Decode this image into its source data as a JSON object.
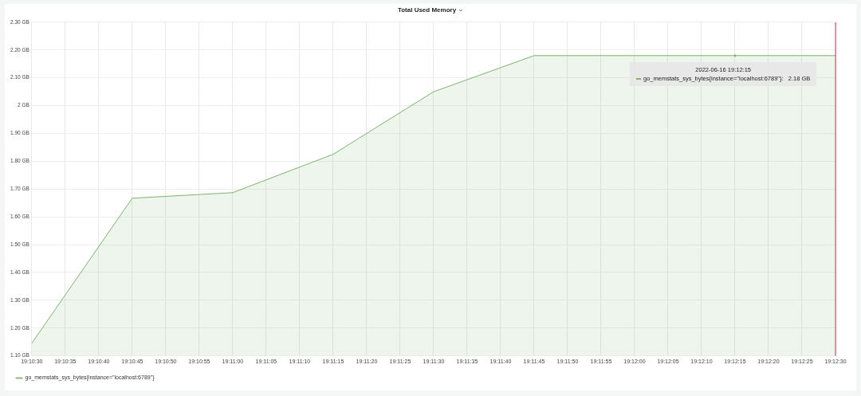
{
  "chart_data": {
    "type": "area",
    "title": "Total Used Memory",
    "x": [
      "2022-06-16T19:10:30",
      "2022-06-16T19:10:45",
      "2022-06-16T19:11:00",
      "2022-06-16T19:11:15",
      "2022-06-16T19:11:30",
      "2022-06-16T19:11:45",
      "2022-06-16T19:12:00",
      "2022-06-16T19:12:15",
      "2022-06-16T19:12:30"
    ],
    "series": [
      {
        "name": "go_memstats_sys_bytes{instance=\"localhost:6789\"}",
        "color": "#7eb26d",
        "values": [
          1.145,
          1.667,
          1.687,
          1.825,
          2.05,
          2.18,
          2.18,
          2.18,
          2.18
        ]
      }
    ],
    "xlim": [
      "2022-06-16T19:10:30",
      "2022-06-16T19:12:30"
    ],
    "xticks": [
      {
        "value": "2022-06-16T19:10:30",
        "label": "19:10:30"
      },
      {
        "value": "2022-06-16T19:10:35",
        "label": "19:10:35"
      },
      {
        "value": "2022-06-16T19:10:40",
        "label": "19:10:40"
      },
      {
        "value": "2022-06-16T19:10:45",
        "label": "19:10:45"
      },
      {
        "value": "2022-06-16T19:10:50",
        "label": "19:10:50"
      },
      {
        "value": "2022-06-16T19:10:55",
        "label": "19:10:55"
      },
      {
        "value": "2022-06-16T19:11:00",
        "label": "19:11:00"
      },
      {
        "value": "2022-06-16T19:11:05",
        "label": "19:11:05"
      },
      {
        "value": "2022-06-16T19:11:10",
        "label": "19:11:10"
      },
      {
        "value": "2022-06-16T19:11:15",
        "label": "19:11:15"
      },
      {
        "value": "2022-06-16T19:11:20",
        "label": "19:11:20"
      },
      {
        "value": "2022-06-16T19:11:25",
        "label": "19:11:25"
      },
      {
        "value": "2022-06-16T19:11:30",
        "label": "19:11:30"
      },
      {
        "value": "2022-06-16T19:11:35",
        "label": "19:11:35"
      },
      {
        "value": "2022-06-16T19:11:40",
        "label": "19:11:40"
      },
      {
        "value": "2022-06-16T19:11:45",
        "label": "19:11:45"
      },
      {
        "value": "2022-06-16T19:11:50",
        "label": "19:11:50"
      },
      {
        "value": "2022-06-16T19:11:55",
        "label": "19:11:55"
      },
      {
        "value": "2022-06-16T19:12:00",
        "label": "19:12:00"
      },
      {
        "value": "2022-06-16T19:12:05",
        "label": "19:12:05"
      },
      {
        "value": "2022-06-16T19:12:10",
        "label": "19:12:10"
      },
      {
        "value": "2022-06-16T19:12:15",
        "label": "19:12:15"
      },
      {
        "value": "2022-06-16T19:12:20",
        "label": "19:12:20"
      },
      {
        "value": "2022-06-16T19:12:25",
        "label": "19:12:25"
      },
      {
        "value": "2022-06-16T19:12:30",
        "label": "19:12:30"
      }
    ],
    "ylim": [
      1.1,
      2.3
    ],
    "yticks": [
      {
        "value": 1.1,
        "label": "1.10 GB"
      },
      {
        "value": 1.2,
        "label": "1.20 GB"
      },
      {
        "value": 1.3,
        "label": "1.30 GB"
      },
      {
        "value": 1.4,
        "label": "1.40 GB"
      },
      {
        "value": 1.5,
        "label": "1.50 GB"
      },
      {
        "value": 1.6,
        "label": "1.60 GB"
      },
      {
        "value": 1.7,
        "label": "1.70 GB"
      },
      {
        "value": 1.8,
        "label": "1.80 GB"
      },
      {
        "value": 1.9,
        "label": "1.90 GB"
      },
      {
        "value": 2,
        "label": "2 GB"
      },
      {
        "value": 2.1,
        "label": "2.10 GB"
      },
      {
        "value": 2.2,
        "label": "2.20 GB"
      },
      {
        "value": 2.3,
        "label": "2.30 GB"
      }
    ],
    "grid": true,
    "legend": "bottom left",
    "marker": "none",
    "line_style": "solid",
    "ref_lines": [
      {
        "axis": "x",
        "value": "2022-06-16T19:12:30",
        "color": "#e02f44"
      }
    ],
    "annotations": [
      {
        "text": "2022-06-16 19:12:15",
        "x": "2022-06-16T19:12:15",
        "y": 2.18
      },
      "go_memstats_sys_bytes{instance=\"localhost:6789\"}:   2.18 GB"
    ]
  }
}
